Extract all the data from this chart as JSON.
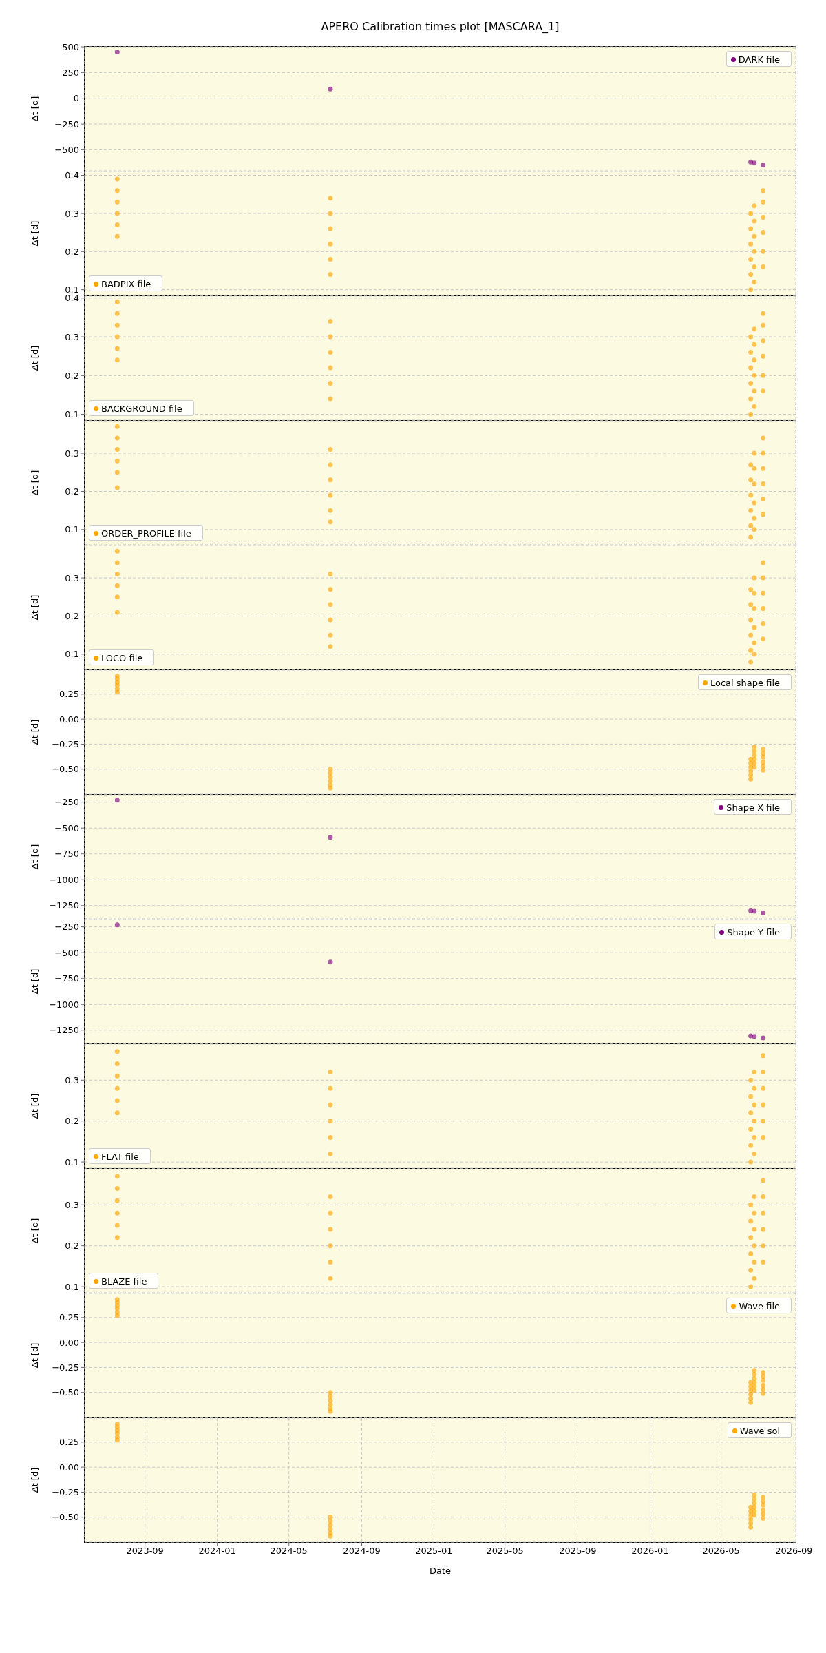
{
  "chart_data": [
    {
      "type": "scatter",
      "title": "APERO Calibration times plot [MASCARA_1]",
      "ylabel": "Δt [d]",
      "xlim": [
        "2023-05-22",
        "2026-09-04"
      ],
      "xticks": [
        "2023-09",
        "2024-01",
        "2024-05",
        "2024-09",
        "2025-01",
        "2025-05",
        "2025-09",
        "2026-01",
        "2026-05",
        "2026-09"
      ],
      "ylim": [
        -705,
        500
      ],
      "yticks": [
        {
          "value": -500,
          "label": "−500"
        },
        {
          "value": -250,
          "label": "−250"
        },
        0,
        250,
        500
      ],
      "tick_labels": "y",
      "grid": true,
      "legend": "top right",
      "marker": "circle",
      "series": [
        {
          "name": "DARK file",
          "color": "#800080",
          "x": [
            "2023-07-16",
            "2024-07-10",
            "2026-06-20",
            "2026-06-26",
            "2026-07-11"
          ],
          "values": [
            450,
            90,
            -620,
            -630,
            -650
          ]
        }
      ]
    },
    {
      "type": "scatter",
      "ylabel": "Δt [d]",
      "xlim": [
        "2023-05-22",
        "2026-09-04"
      ],
      "xticks": [
        "2023-09",
        "2024-01",
        "2024-05",
        "2024-09",
        "2025-01",
        "2025-05",
        "2025-09",
        "2026-01",
        "2026-05",
        "2026-09"
      ],
      "ylim": [
        0.085,
        0.41
      ],
      "yticks": [
        0.1,
        0.2,
        0.3,
        0.4
      ],
      "tick_labels": "y",
      "grid": true,
      "legend": "bottom left",
      "marker": "circle",
      "series": [
        {
          "name": "BADPIX file",
          "color": "#ffa500",
          "x": [
            "2023-07-16",
            "2023-07-16",
            "2023-07-16",
            "2023-07-16",
            "2023-07-16",
            "2023-07-16",
            "2024-07-10",
            "2024-07-10",
            "2024-07-10",
            "2024-07-10",
            "2024-07-10",
            "2024-07-10",
            "2026-06-20",
            "2026-06-20",
            "2026-06-20",
            "2026-06-20",
            "2026-06-20",
            "2026-06-20",
            "2026-06-26",
            "2026-06-26",
            "2026-06-26",
            "2026-06-26",
            "2026-06-26",
            "2026-06-26",
            "2026-07-11",
            "2026-07-11",
            "2026-07-11",
            "2026-07-11",
            "2026-07-11",
            "2026-07-11"
          ],
          "values": [
            0.39,
            0.36,
            0.33,
            0.3,
            0.27,
            0.24,
            0.34,
            0.3,
            0.26,
            0.22,
            0.18,
            0.14,
            0.3,
            0.26,
            0.22,
            0.18,
            0.14,
            0.1,
            0.32,
            0.28,
            0.24,
            0.2,
            0.16,
            0.12,
            0.36,
            0.33,
            0.29,
            0.25,
            0.2,
            0.16
          ]
        }
      ]
    },
    {
      "type": "scatter",
      "ylabel": "Δt [d]",
      "xlim": [
        "2023-05-22",
        "2026-09-04"
      ],
      "xticks": [
        "2023-09",
        "2024-01",
        "2024-05",
        "2024-09",
        "2025-01",
        "2025-05",
        "2025-09",
        "2026-01",
        "2026-05",
        "2026-09"
      ],
      "ylim": [
        0.085,
        0.405
      ],
      "yticks": [
        0.1,
        0.2,
        0.3,
        0.4
      ],
      "tick_labels": "y",
      "grid": true,
      "legend": "bottom left",
      "marker": "circle",
      "series": [
        {
          "name": "BACKGROUND file",
          "color": "#ffa500",
          "x": [
            "2023-07-16",
            "2023-07-16",
            "2023-07-16",
            "2023-07-16",
            "2023-07-16",
            "2023-07-16",
            "2024-07-10",
            "2024-07-10",
            "2024-07-10",
            "2024-07-10",
            "2024-07-10",
            "2024-07-10",
            "2026-06-20",
            "2026-06-20",
            "2026-06-20",
            "2026-06-20",
            "2026-06-20",
            "2026-06-20",
            "2026-06-26",
            "2026-06-26",
            "2026-06-26",
            "2026-06-26",
            "2026-06-26",
            "2026-06-26",
            "2026-07-11",
            "2026-07-11",
            "2026-07-11",
            "2026-07-11",
            "2026-07-11",
            "2026-07-11"
          ],
          "values": [
            0.39,
            0.36,
            0.33,
            0.3,
            0.27,
            0.24,
            0.34,
            0.3,
            0.26,
            0.22,
            0.18,
            0.14,
            0.3,
            0.26,
            0.22,
            0.18,
            0.14,
            0.1,
            0.32,
            0.28,
            0.24,
            0.2,
            0.16,
            0.12,
            0.36,
            0.33,
            0.29,
            0.25,
            0.2,
            0.16
          ]
        }
      ]
    },
    {
      "type": "scatter",
      "ylabel": "Δt [d]",
      "xlim": [
        "2023-05-22",
        "2026-09-04"
      ],
      "xticks": [
        "2023-09",
        "2024-01",
        "2024-05",
        "2024-09",
        "2025-01",
        "2025-05",
        "2025-09",
        "2026-01",
        "2026-05",
        "2026-09"
      ],
      "ylim": [
        0.06,
        0.385
      ],
      "yticks": [
        0.1,
        0.2,
        0.3
      ],
      "tick_labels": "y",
      "grid": true,
      "legend": "bottom left",
      "marker": "circle",
      "series": [
        {
          "name": "ORDER_PROFILE file",
          "color": "#ffa500",
          "x": [
            "2023-07-16",
            "2023-07-16",
            "2023-07-16",
            "2023-07-16",
            "2023-07-16",
            "2023-07-16",
            "2024-07-10",
            "2024-07-10",
            "2024-07-10",
            "2024-07-10",
            "2024-07-10",
            "2024-07-10",
            "2026-06-20",
            "2026-06-20",
            "2026-06-20",
            "2026-06-20",
            "2026-06-20",
            "2026-06-20",
            "2026-06-26",
            "2026-06-26",
            "2026-06-26",
            "2026-06-26",
            "2026-06-26",
            "2026-06-26",
            "2026-07-11",
            "2026-07-11",
            "2026-07-11",
            "2026-07-11",
            "2026-07-11",
            "2026-07-11"
          ],
          "values": [
            0.37,
            0.34,
            0.31,
            0.28,
            0.25,
            0.21,
            0.31,
            0.27,
            0.23,
            0.19,
            0.15,
            0.12,
            0.27,
            0.23,
            0.19,
            0.15,
            0.11,
            0.08,
            0.3,
            0.26,
            0.22,
            0.17,
            0.13,
            0.1,
            0.34,
            0.3,
            0.26,
            0.22,
            0.18,
            0.14
          ]
        }
      ]
    },
    {
      "type": "scatter",
      "ylabel": "Δt [d]",
      "xlim": [
        "2023-05-22",
        "2026-09-04"
      ],
      "xticks": [
        "2023-09",
        "2024-01",
        "2024-05",
        "2024-09",
        "2025-01",
        "2025-05",
        "2025-09",
        "2026-01",
        "2026-05",
        "2026-09"
      ],
      "ylim": [
        0.06,
        0.385
      ],
      "yticks": [
        0.1,
        0.2,
        0.3
      ],
      "tick_labels": "y",
      "grid": true,
      "legend": "bottom left",
      "marker": "circle",
      "series": [
        {
          "name": "LOCO file",
          "color": "#ffa500",
          "x": [
            "2023-07-16",
            "2023-07-16",
            "2023-07-16",
            "2023-07-16",
            "2023-07-16",
            "2023-07-16",
            "2024-07-10",
            "2024-07-10",
            "2024-07-10",
            "2024-07-10",
            "2024-07-10",
            "2024-07-10",
            "2026-06-20",
            "2026-06-20",
            "2026-06-20",
            "2026-06-20",
            "2026-06-20",
            "2026-06-20",
            "2026-06-26",
            "2026-06-26",
            "2026-06-26",
            "2026-06-26",
            "2026-06-26",
            "2026-06-26",
            "2026-07-11",
            "2026-07-11",
            "2026-07-11",
            "2026-07-11",
            "2026-07-11",
            "2026-07-11"
          ],
          "values": [
            0.37,
            0.34,
            0.31,
            0.28,
            0.25,
            0.21,
            0.31,
            0.27,
            0.23,
            0.19,
            0.15,
            0.12,
            0.27,
            0.23,
            0.19,
            0.15,
            0.11,
            0.08,
            0.3,
            0.26,
            0.22,
            0.17,
            0.13,
            0.1,
            0.34,
            0.3,
            0.26,
            0.22,
            0.18,
            0.14
          ]
        }
      ]
    },
    {
      "type": "scatter",
      "ylabel": "Δt [d]",
      "xlim": [
        "2023-05-22",
        "2026-09-04"
      ],
      "xticks": [
        "2023-09",
        "2024-01",
        "2024-05",
        "2024-09",
        "2025-01",
        "2025-05",
        "2025-09",
        "2026-01",
        "2026-05",
        "2026-09"
      ],
      "ylim": [
        -0.75,
        0.49
      ],
      "yticks": [
        {
          "value": -0.5,
          "label": "−0.50"
        },
        {
          "value": -0.25,
          "label": "−0.25"
        },
        {
          "value": 0,
          "label": "0.00"
        },
        {
          "value": 0.25,
          "label": "0.25"
        }
      ],
      "tick_labels": "y",
      "grid": true,
      "legend": "top right",
      "marker": "circle",
      "series": [
        {
          "name": "Local shape file",
          "color": "#ffa500",
          "x": [
            "2023-07-16",
            "2023-07-16",
            "2023-07-16",
            "2023-07-16",
            "2023-07-16",
            "2023-07-16",
            "2024-07-10",
            "2024-07-10",
            "2024-07-10",
            "2024-07-10",
            "2024-07-10",
            "2024-07-10",
            "2026-06-20",
            "2026-06-20",
            "2026-06-20",
            "2026-06-20",
            "2026-06-20",
            "2026-06-20",
            "2026-06-26",
            "2026-06-26",
            "2026-06-26",
            "2026-06-26",
            "2026-06-26",
            "2026-06-26",
            "2026-07-11",
            "2026-07-11",
            "2026-07-11",
            "2026-07-11",
            "2026-07-11",
            "2026-07-11"
          ],
          "values": [
            0.43,
            0.4,
            0.37,
            0.34,
            0.3,
            0.27,
            -0.5,
            -0.54,
            -0.58,
            -0.62,
            -0.66,
            -0.69,
            -0.4,
            -0.44,
            -0.48,
            -0.52,
            -0.56,
            -0.6,
            -0.28,
            -0.32,
            -0.36,
            -0.4,
            -0.44,
            -0.48,
            -0.3,
            -0.34,
            -0.38,
            -0.43,
            -0.47,
            -0.51
          ]
        }
      ]
    },
    {
      "type": "scatter",
      "ylabel": "Δt [d]",
      "xlim": [
        "2023-05-22",
        "2026-09-04"
      ],
      "xticks": [
        "2023-09",
        "2024-01",
        "2024-05",
        "2024-09",
        "2025-01",
        "2025-05",
        "2025-09",
        "2026-01",
        "2026-05",
        "2026-09"
      ],
      "ylim": [
        -1378,
        -179
      ],
      "yticks": [
        {
          "value": -1250,
          "label": "−1250"
        },
        {
          "value": -1000,
          "label": "−1000"
        },
        {
          "value": -750,
          "label": "−750"
        },
        {
          "value": -500,
          "label": "−500"
        },
        {
          "value": -250,
          "label": "−250"
        }
      ],
      "tick_labels": "y",
      "grid": true,
      "legend": "top right",
      "marker": "circle",
      "series": [
        {
          "name": "Shape X file",
          "color": "#800080",
          "x": [
            "2023-07-16",
            "2024-07-10",
            "2026-06-20",
            "2026-06-26",
            "2026-07-11"
          ],
          "values": [
            -230,
            -590,
            -1300,
            -1305,
            -1320
          ]
        }
      ]
    },
    {
      "type": "scatter",
      "ylabel": "Δt [d]",
      "xlim": [
        "2023-05-22",
        "2026-09-04"
      ],
      "xticks": [
        "2023-09",
        "2024-01",
        "2024-05",
        "2024-09",
        "2025-01",
        "2025-05",
        "2025-09",
        "2026-01",
        "2026-05",
        "2026-09"
      ],
      "ylim": [
        -1378,
        -179
      ],
      "yticks": [
        {
          "value": -1250,
          "label": "−1250"
        },
        {
          "value": -1000,
          "label": "−1000"
        },
        {
          "value": -750,
          "label": "−750"
        },
        {
          "value": -500,
          "label": "−500"
        },
        {
          "value": -250,
          "label": "−250"
        }
      ],
      "tick_labels": "y",
      "grid": true,
      "legend": "top right",
      "marker": "circle",
      "series": [
        {
          "name": "Shape Y file",
          "color": "#800080",
          "x": [
            "2023-07-16",
            "2024-07-10",
            "2026-06-20",
            "2026-06-26",
            "2026-07-11"
          ],
          "values": [
            -230,
            -590,
            -1305,
            -1310,
            -1325
          ]
        }
      ]
    },
    {
      "type": "scatter",
      "ylabel": "Δt [d]",
      "xlim": [
        "2023-05-22",
        "2026-09-04"
      ],
      "xticks": [
        "2023-09",
        "2024-01",
        "2024-05",
        "2024-09",
        "2025-01",
        "2025-05",
        "2025-09",
        "2026-01",
        "2026-05",
        "2026-09"
      ],
      "ylim": [
        0.085,
        0.388
      ],
      "yticks": [
        0.1,
        0.2,
        0.3
      ],
      "tick_labels": "y",
      "grid": true,
      "legend": "bottom left",
      "marker": "circle",
      "series": [
        {
          "name": "FLAT file",
          "color": "#ffa500",
          "x": [
            "2023-07-16",
            "2023-07-16",
            "2023-07-16",
            "2023-07-16",
            "2023-07-16",
            "2023-07-16",
            "2024-07-10",
            "2024-07-10",
            "2024-07-10",
            "2024-07-10",
            "2024-07-10",
            "2024-07-10",
            "2026-06-20",
            "2026-06-20",
            "2026-06-20",
            "2026-06-20",
            "2026-06-20",
            "2026-06-20",
            "2026-06-26",
            "2026-06-26",
            "2026-06-26",
            "2026-06-26",
            "2026-06-26",
            "2026-06-26",
            "2026-07-11",
            "2026-07-11",
            "2026-07-11",
            "2026-07-11",
            "2026-07-11",
            "2026-07-11"
          ],
          "values": [
            0.37,
            0.34,
            0.31,
            0.28,
            0.25,
            0.22,
            0.32,
            0.28,
            0.24,
            0.2,
            0.16,
            0.12,
            0.3,
            0.26,
            0.22,
            0.18,
            0.14,
            0.1,
            0.32,
            0.28,
            0.24,
            0.2,
            0.16,
            0.12,
            0.36,
            0.32,
            0.28,
            0.24,
            0.2,
            0.16
          ]
        }
      ]
    },
    {
      "type": "scatter",
      "ylabel": "Δt [d]",
      "xlim": [
        "2023-05-22",
        "2026-09-04"
      ],
      "xticks": [
        "2023-09",
        "2024-01",
        "2024-05",
        "2024-09",
        "2025-01",
        "2025-05",
        "2025-09",
        "2026-01",
        "2026-05",
        "2026-09"
      ],
      "ylim": [
        0.085,
        0.388
      ],
      "yticks": [
        0.1,
        0.2,
        0.3
      ],
      "tick_labels": "y",
      "grid": true,
      "legend": "bottom left",
      "marker": "circle",
      "series": [
        {
          "name": "BLAZE file",
          "color": "#ffa500",
          "x": [
            "2023-07-16",
            "2023-07-16",
            "2023-07-16",
            "2023-07-16",
            "2023-07-16",
            "2023-07-16",
            "2024-07-10",
            "2024-07-10",
            "2024-07-10",
            "2024-07-10",
            "2024-07-10",
            "2024-07-10",
            "2026-06-20",
            "2026-06-20",
            "2026-06-20",
            "2026-06-20",
            "2026-06-20",
            "2026-06-20",
            "2026-06-26",
            "2026-06-26",
            "2026-06-26",
            "2026-06-26",
            "2026-06-26",
            "2026-06-26",
            "2026-07-11",
            "2026-07-11",
            "2026-07-11",
            "2026-07-11",
            "2026-07-11",
            "2026-07-11"
          ],
          "values": [
            0.37,
            0.34,
            0.31,
            0.28,
            0.25,
            0.22,
            0.32,
            0.28,
            0.24,
            0.2,
            0.16,
            0.12,
            0.3,
            0.26,
            0.22,
            0.18,
            0.14,
            0.1,
            0.32,
            0.28,
            0.24,
            0.2,
            0.16,
            0.12,
            0.36,
            0.32,
            0.28,
            0.24,
            0.2,
            0.16
          ]
        }
      ]
    },
    {
      "type": "scatter",
      "ylabel": "Δt [d]",
      "xlim": [
        "2023-05-22",
        "2026-09-04"
      ],
      "xticks": [
        "2023-09",
        "2024-01",
        "2024-05",
        "2024-09",
        "2025-01",
        "2025-05",
        "2025-09",
        "2026-01",
        "2026-05",
        "2026-09"
      ],
      "ylim": [
        -0.75,
        0.49
      ],
      "yticks": [
        {
          "value": -0.5,
          "label": "−0.50"
        },
        {
          "value": -0.25,
          "label": "−0.25"
        },
        {
          "value": 0,
          "label": "0.00"
        },
        {
          "value": 0.25,
          "label": "0.25"
        }
      ],
      "tick_labels": "y",
      "grid": true,
      "legend": "top right",
      "marker": "circle",
      "series": [
        {
          "name": "Wave file",
          "color": "#ffa500",
          "x": [
            "2023-07-16",
            "2023-07-16",
            "2023-07-16",
            "2023-07-16",
            "2023-07-16",
            "2023-07-16",
            "2024-07-10",
            "2024-07-10",
            "2024-07-10",
            "2024-07-10",
            "2024-07-10",
            "2024-07-10",
            "2026-06-20",
            "2026-06-20",
            "2026-06-20",
            "2026-06-20",
            "2026-06-20",
            "2026-06-20",
            "2026-06-26",
            "2026-06-26",
            "2026-06-26",
            "2026-06-26",
            "2026-06-26",
            "2026-06-26",
            "2026-07-11",
            "2026-07-11",
            "2026-07-11",
            "2026-07-11",
            "2026-07-11",
            "2026-07-11"
          ],
          "values": [
            0.43,
            0.4,
            0.37,
            0.34,
            0.3,
            0.27,
            -0.5,
            -0.54,
            -0.58,
            -0.62,
            -0.66,
            -0.69,
            -0.4,
            -0.44,
            -0.48,
            -0.52,
            -0.56,
            -0.6,
            -0.28,
            -0.32,
            -0.36,
            -0.4,
            -0.44,
            -0.48,
            -0.3,
            -0.34,
            -0.38,
            -0.43,
            -0.47,
            -0.51
          ]
        }
      ]
    },
    {
      "type": "scatter",
      "ylabel": "Δt [d]",
      "xlabel": "Date",
      "xlim": [
        "2023-05-22",
        "2026-09-04"
      ],
      "xticks": [
        "2023-09",
        "2024-01",
        "2024-05",
        "2024-09",
        "2025-01",
        "2025-05",
        "2025-09",
        "2026-01",
        "2026-05",
        "2026-09"
      ],
      "ylim": [
        -0.75,
        0.49
      ],
      "yticks": [
        {
          "value": -0.5,
          "label": "−0.50"
        },
        {
          "value": -0.25,
          "label": "−0.25"
        },
        {
          "value": 0,
          "label": "0.00"
        },
        {
          "value": 0.25,
          "label": "0.25"
        }
      ],
      "grid": true,
      "legend": "top right",
      "marker": "circle",
      "series": [
        {
          "name": "Wave sol",
          "color": "#ffa500",
          "x": [
            "2023-07-16",
            "2023-07-16",
            "2023-07-16",
            "2023-07-16",
            "2023-07-16",
            "2023-07-16",
            "2024-07-10",
            "2024-07-10",
            "2024-07-10",
            "2024-07-10",
            "2024-07-10",
            "2024-07-10",
            "2026-06-20",
            "2026-06-20",
            "2026-06-20",
            "2026-06-20",
            "2026-06-20",
            "2026-06-20",
            "2026-06-26",
            "2026-06-26",
            "2026-06-26",
            "2026-06-26",
            "2026-06-26",
            "2026-06-26",
            "2026-07-11",
            "2026-07-11",
            "2026-07-11",
            "2026-07-11",
            "2026-07-11",
            "2026-07-11"
          ],
          "values": [
            0.43,
            0.4,
            0.37,
            0.34,
            0.3,
            0.27,
            -0.5,
            -0.54,
            -0.58,
            -0.62,
            -0.66,
            -0.69,
            -0.4,
            -0.44,
            -0.48,
            -0.52,
            -0.56,
            -0.6,
            -0.28,
            -0.32,
            -0.36,
            -0.4,
            -0.44,
            -0.48,
            -0.3,
            -0.34,
            -0.38,
            -0.43,
            -0.47,
            -0.51
          ]
        }
      ]
    }
  ]
}
